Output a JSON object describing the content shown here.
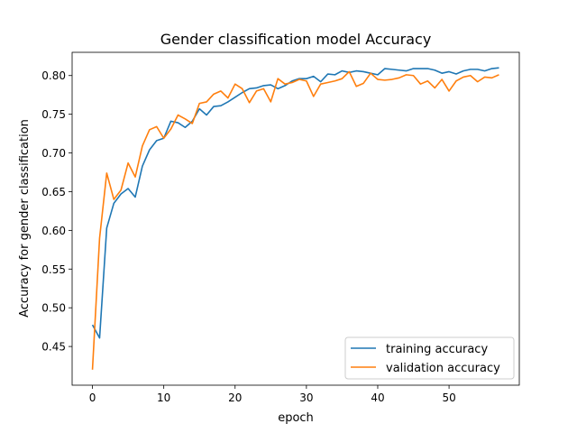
{
  "chart_data": {
    "type": "line",
    "title": "Gender classification model Accuracy",
    "xlabel": "epoch",
    "ylabel": "Accuracy for gender classification",
    "xlim": [
      -2.85,
      59.85
    ],
    "ylim": [
      0.4,
      0.83
    ],
    "xticks": [
      0,
      10,
      20,
      30,
      40,
      50
    ],
    "xtick_labels": [
      "0",
      "10",
      "20",
      "30",
      "40",
      "50"
    ],
    "yticks": [
      0.45,
      0.5,
      0.55,
      0.6,
      0.65,
      0.7,
      0.75,
      0.8
    ],
    "ytick_labels": [
      "0.45",
      "0.50",
      "0.55",
      "0.60",
      "0.65",
      "0.70",
      "0.75",
      "0.80"
    ],
    "grid": false,
    "legend_position": "lower-right",
    "series": [
      {
        "name": "training accuracy",
        "color": "#1f77b4",
        "values": [
          0.478,
          0.461,
          0.603,
          0.635,
          0.647,
          0.654,
          0.643,
          0.683,
          0.704,
          0.716,
          0.719,
          0.741,
          0.739,
          0.733,
          0.741,
          0.757,
          0.749,
          0.76,
          0.761,
          0.766,
          0.772,
          0.778,
          0.783,
          0.784,
          0.787,
          0.788,
          0.783,
          0.787,
          0.793,
          0.796,
          0.796,
          0.799,
          0.792,
          0.802,
          0.801,
          0.806,
          0.804,
          0.806,
          0.805,
          0.803,
          0.801,
          0.809,
          0.808,
          0.807,
          0.806,
          0.809,
          0.809,
          0.809,
          0.807,
          0.803,
          0.805,
          0.802,
          0.806,
          0.808,
          0.808,
          0.806,
          0.809,
          0.81
        ]
      },
      {
        "name": "validation accuracy",
        "color": "#ff7f0e",
        "values": [
          0.42,
          0.59,
          0.674,
          0.64,
          0.652,
          0.687,
          0.669,
          0.709,
          0.73,
          0.734,
          0.719,
          0.731,
          0.749,
          0.744,
          0.738,
          0.764,
          0.766,
          0.776,
          0.78,
          0.771,
          0.789,
          0.783,
          0.765,
          0.78,
          0.783,
          0.766,
          0.796,
          0.789,
          0.791,
          0.795,
          0.793,
          0.773,
          0.789,
          0.791,
          0.793,
          0.796,
          0.805,
          0.786,
          0.79,
          0.803,
          0.795,
          0.794,
          0.795,
          0.797,
          0.801,
          0.8,
          0.789,
          0.793,
          0.784,
          0.795,
          0.78,
          0.793,
          0.798,
          0.8,
          0.792,
          0.798,
          0.797,
          0.801
        ]
      }
    ]
  }
}
